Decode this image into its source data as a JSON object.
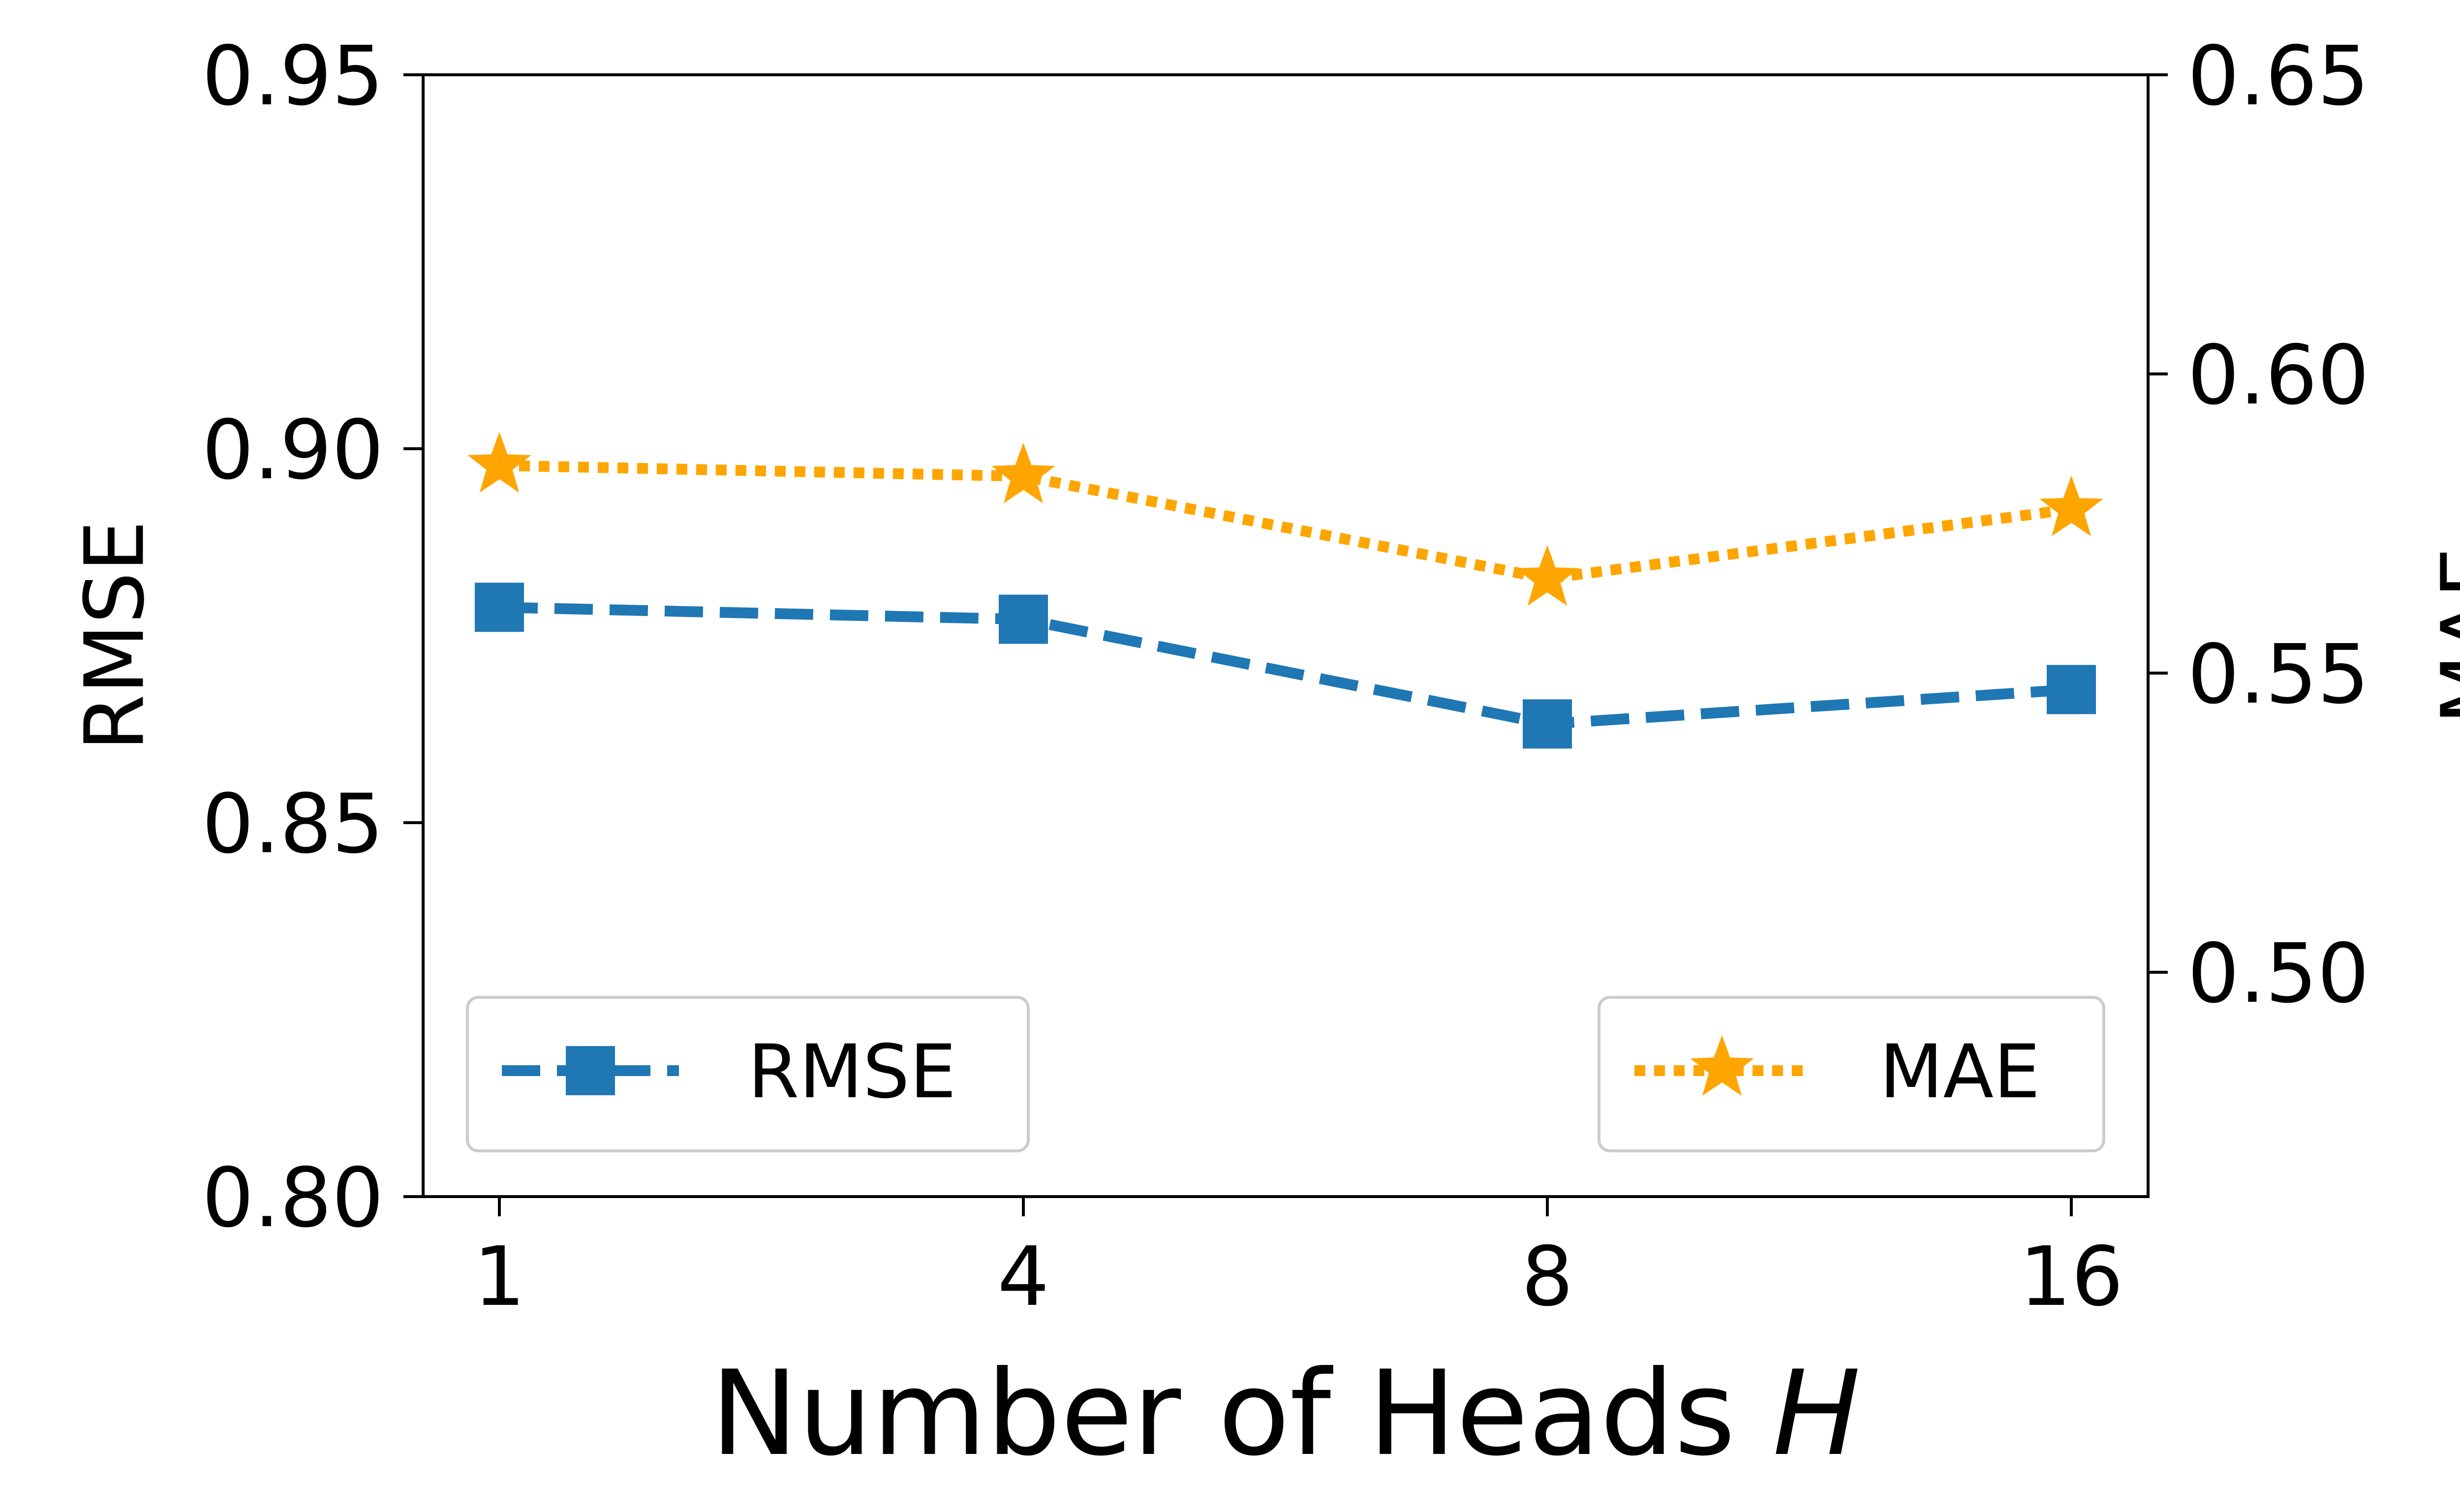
{
  "chart_data": {
    "type": "line",
    "xlabel_prefix": "Number of Heads ",
    "xlabel_var": "H",
    "ylabel_left": "RMSE",
    "ylabel_right": "MAE",
    "categories": [
      "1",
      "4",
      "8",
      "16"
    ],
    "ylim_left": [
      0.8,
      0.95
    ],
    "ylim_right": [
      0.4625,
      0.65
    ],
    "yticks_left": [
      "0.80",
      "0.85",
      "0.90",
      "0.95"
    ],
    "yticks_right": [
      "0.50",
      "0.55",
      "0.60",
      "0.65"
    ],
    "series": [
      {
        "name": "RMSE",
        "axis": "left",
        "color": "#1f77b4",
        "marker": "square",
        "linestyle": "dashed",
        "values": [
          0.8788,
          0.8772,
          0.8632,
          0.8678
        ]
      },
      {
        "name": "MAE",
        "axis": "right",
        "color": "#ffa500",
        "marker": "star",
        "linestyle": "dotted",
        "values": [
          0.5847,
          0.5829,
          0.5658,
          0.5774
        ]
      }
    ],
    "legend": [
      {
        "label": "RMSE",
        "placement": "lower-left"
      },
      {
        "label": "MAE",
        "placement": "lower-right"
      }
    ]
  }
}
